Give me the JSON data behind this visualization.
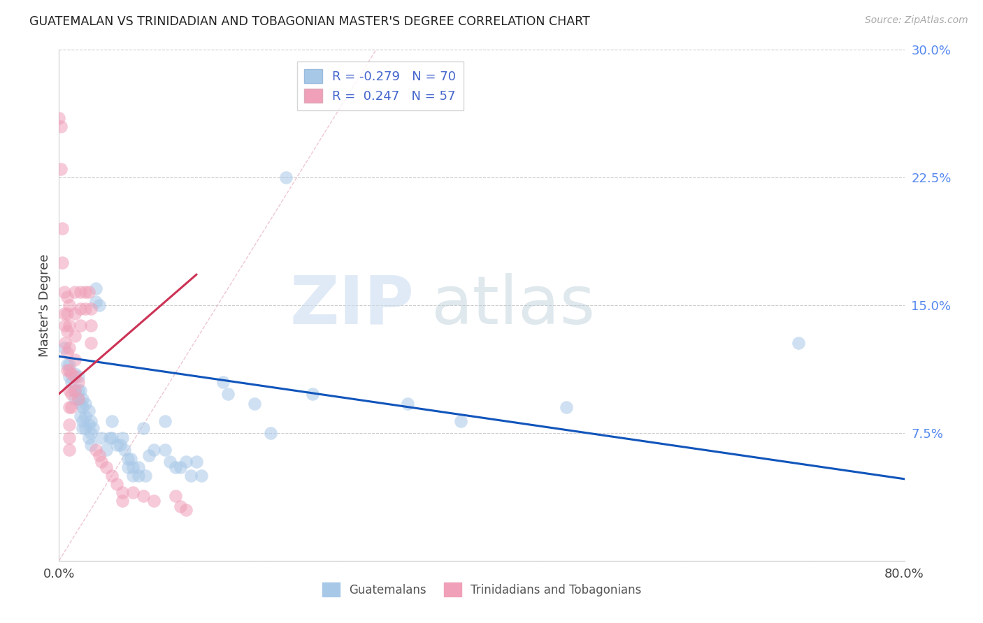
{
  "title": "GUATEMALAN VS TRINIDADIAN AND TOBAGONIAN MASTER'S DEGREE CORRELATION CHART",
  "source": "Source: ZipAtlas.com",
  "ylabel": "Master's Degree",
  "xlim": [
    0.0,
    0.8
  ],
  "ylim": [
    0.0,
    0.3
  ],
  "yticks": [
    0.0,
    0.075,
    0.15,
    0.225,
    0.3
  ],
  "ytick_labels": [
    "",
    "7.5%",
    "15.0%",
    "22.5%",
    "30.0%"
  ],
  "xtick_positions": [
    0.0,
    0.1,
    0.2,
    0.3,
    0.4,
    0.5,
    0.6,
    0.7,
    0.8
  ],
  "xtick_labels": [
    "0.0%",
    "",
    "",
    "",
    "",
    "",
    "",
    "",
    "80.0%"
  ],
  "bg_color": "#ffffff",
  "grid_color": "#cccccc",
  "blue_color": "#a8c8e8",
  "pink_color": "#f0a0b8",
  "blue_line_color": "#1155bb",
  "pink_line_color": "#cc3355",
  "diag_line_color": "#cccccc",
  "legend_r_blue": "-0.279",
  "legend_n_blue": "70",
  "legend_r_pink": "0.247",
  "legend_n_pink": "57",
  "scatter_blue": [
    [
      0.005,
      0.125
    ],
    [
      0.008,
      0.115
    ],
    [
      0.01,
      0.115
    ],
    [
      0.01,
      0.108
    ],
    [
      0.012,
      0.105
    ],
    [
      0.015,
      0.11
    ],
    [
      0.015,
      0.1
    ],
    [
      0.015,
      0.095
    ],
    [
      0.018,
      0.108
    ],
    [
      0.018,
      0.1
    ],
    [
      0.018,
      0.095
    ],
    [
      0.02,
      0.1
    ],
    [
      0.02,
      0.092
    ],
    [
      0.02,
      0.085
    ],
    [
      0.022,
      0.095
    ],
    [
      0.022,
      0.09
    ],
    [
      0.022,
      0.082
    ],
    [
      0.022,
      0.078
    ],
    [
      0.025,
      0.092
    ],
    [
      0.025,
      0.085
    ],
    [
      0.025,
      0.078
    ],
    [
      0.028,
      0.088
    ],
    [
      0.028,
      0.08
    ],
    [
      0.028,
      0.072
    ],
    [
      0.03,
      0.082
    ],
    [
      0.03,
      0.075
    ],
    [
      0.03,
      0.068
    ],
    [
      0.032,
      0.078
    ],
    [
      0.035,
      0.16
    ],
    [
      0.035,
      0.152
    ],
    [
      0.038,
      0.15
    ],
    [
      0.04,
      0.072
    ],
    [
      0.045,
      0.065
    ],
    [
      0.048,
      0.072
    ],
    [
      0.05,
      0.082
    ],
    [
      0.05,
      0.072
    ],
    [
      0.055,
      0.068
    ],
    [
      0.058,
      0.068
    ],
    [
      0.06,
      0.072
    ],
    [
      0.062,
      0.065
    ],
    [
      0.065,
      0.06
    ],
    [
      0.065,
      0.055
    ],
    [
      0.068,
      0.06
    ],
    [
      0.07,
      0.055
    ],
    [
      0.07,
      0.05
    ],
    [
      0.075,
      0.055
    ],
    [
      0.075,
      0.05
    ],
    [
      0.08,
      0.078
    ],
    [
      0.082,
      0.05
    ],
    [
      0.085,
      0.062
    ],
    [
      0.09,
      0.065
    ],
    [
      0.1,
      0.065
    ],
    [
      0.1,
      0.082
    ],
    [
      0.105,
      0.058
    ],
    [
      0.11,
      0.055
    ],
    [
      0.115,
      0.055
    ],
    [
      0.12,
      0.058
    ],
    [
      0.125,
      0.05
    ],
    [
      0.13,
      0.058
    ],
    [
      0.135,
      0.05
    ],
    [
      0.155,
      0.105
    ],
    [
      0.16,
      0.098
    ],
    [
      0.185,
      0.092
    ],
    [
      0.2,
      0.075
    ],
    [
      0.215,
      0.225
    ],
    [
      0.24,
      0.098
    ],
    [
      0.33,
      0.092
    ],
    [
      0.38,
      0.082
    ],
    [
      0.48,
      0.09
    ],
    [
      0.7,
      0.128
    ]
  ],
  "scatter_pink": [
    [
      0.0,
      0.26
    ],
    [
      0.002,
      0.255
    ],
    [
      0.002,
      0.23
    ],
    [
      0.003,
      0.195
    ],
    [
      0.003,
      0.175
    ],
    [
      0.005,
      0.158
    ],
    [
      0.005,
      0.145
    ],
    [
      0.006,
      0.138
    ],
    [
      0.006,
      0.128
    ],
    [
      0.008,
      0.155
    ],
    [
      0.008,
      0.145
    ],
    [
      0.008,
      0.135
    ],
    [
      0.008,
      0.122
    ],
    [
      0.008,
      0.112
    ],
    [
      0.01,
      0.15
    ],
    [
      0.01,
      0.138
    ],
    [
      0.01,
      0.125
    ],
    [
      0.01,
      0.112
    ],
    [
      0.01,
      0.1
    ],
    [
      0.01,
      0.09
    ],
    [
      0.01,
      0.08
    ],
    [
      0.01,
      0.072
    ],
    [
      0.01,
      0.065
    ],
    [
      0.012,
      0.11
    ],
    [
      0.012,
      0.098
    ],
    [
      0.012,
      0.09
    ],
    [
      0.015,
      0.158
    ],
    [
      0.015,
      0.145
    ],
    [
      0.015,
      0.132
    ],
    [
      0.015,
      0.118
    ],
    [
      0.015,
      0.108
    ],
    [
      0.015,
      0.1
    ],
    [
      0.018,
      0.105
    ],
    [
      0.018,
      0.095
    ],
    [
      0.02,
      0.158
    ],
    [
      0.02,
      0.148
    ],
    [
      0.02,
      0.138
    ],
    [
      0.025,
      0.158
    ],
    [
      0.025,
      0.148
    ],
    [
      0.028,
      0.158
    ],
    [
      0.03,
      0.148
    ],
    [
      0.03,
      0.138
    ],
    [
      0.03,
      0.128
    ],
    [
      0.035,
      0.065
    ],
    [
      0.038,
      0.062
    ],
    [
      0.04,
      0.058
    ],
    [
      0.045,
      0.055
    ],
    [
      0.05,
      0.05
    ],
    [
      0.055,
      0.045
    ],
    [
      0.06,
      0.04
    ],
    [
      0.06,
      0.035
    ],
    [
      0.07,
      0.04
    ],
    [
      0.08,
      0.038
    ],
    [
      0.09,
      0.035
    ],
    [
      0.11,
      0.038
    ],
    [
      0.115,
      0.032
    ],
    [
      0.12,
      0.03
    ]
  ],
  "blue_line_x": [
    0.0,
    0.8
  ],
  "blue_line_y": [
    0.12,
    0.048
  ],
  "pink_line_x": [
    0.0,
    0.13
  ],
  "pink_line_y": [
    0.098,
    0.168
  ],
  "diag_line_x": [
    0.0,
    0.3
  ],
  "diag_line_y": [
    0.0,
    0.3
  ]
}
